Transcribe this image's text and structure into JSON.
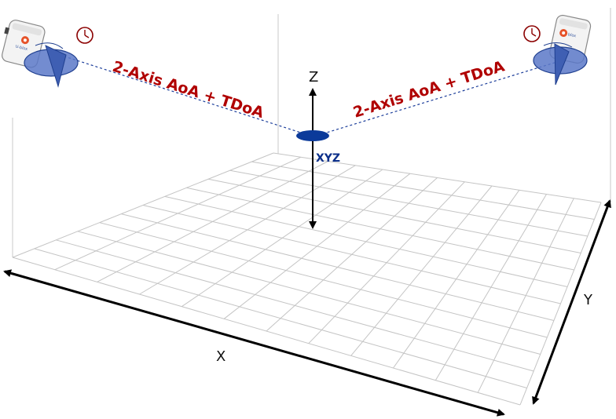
{
  "axes": {
    "x": "X",
    "y": "Y",
    "z": "Z"
  },
  "links": [
    {
      "label": "2-Axis AoA + TDoA"
    },
    {
      "label": "2-Axis AoA + TDoA"
    }
  ],
  "tag": {
    "label": "XYZ"
  },
  "colors": {
    "link_label": "#b00000",
    "tag": "#0b3a9a",
    "antenna_fill": "#5a78c8",
    "clock": "#8b0000",
    "grid": "#c4c4c4",
    "axis_arrow": "#000000"
  },
  "icons": {
    "locator": "locator-device-icon",
    "antenna_pattern": "antenna-pattern-icon",
    "clock": "clock-icon",
    "tag": "tag-ellipse-icon"
  }
}
